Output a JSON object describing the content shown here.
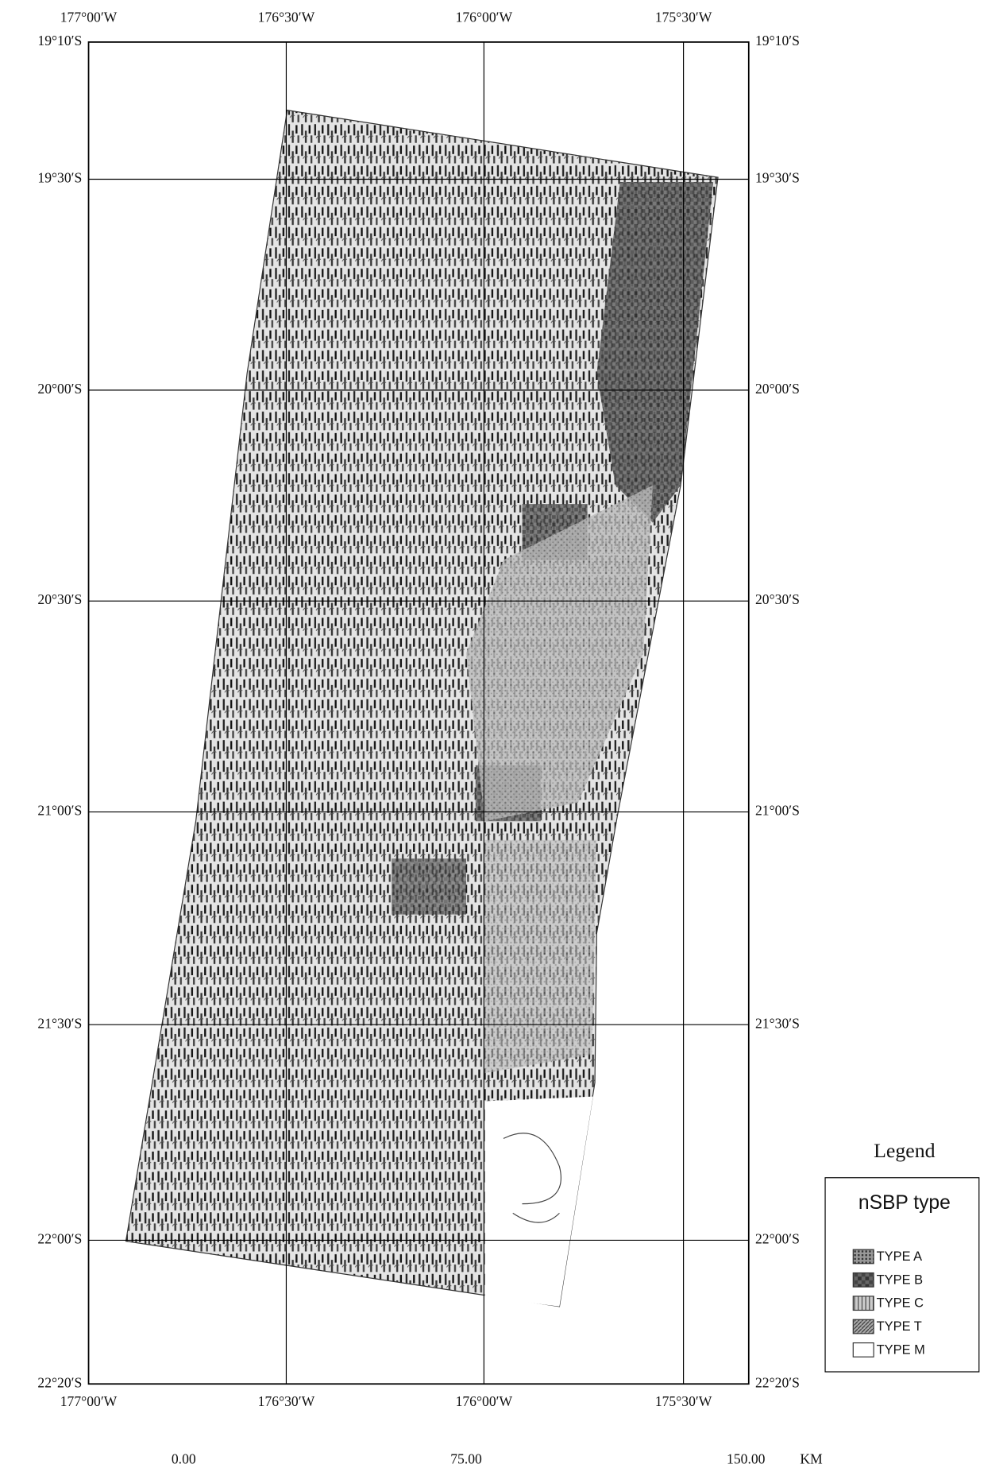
{
  "map": {
    "lon_labels_top": [
      "177°00′W",
      "176°30′W",
      "176°00′W",
      "175°30′W"
    ],
    "lon_labels_bottom": [
      "177°00′W",
      "176°30′W",
      "176°00′W",
      "175°30′W"
    ],
    "lat_labels_left": [
      "19°10′S",
      "19°30′S",
      "20°00′S",
      "20°30′S",
      "21°00′S",
      "21°30′S",
      "22°00′S",
      "22°20′S"
    ],
    "lat_labels_right": [
      "19°10′S",
      "19°30′S",
      "20°00′S",
      "20°30′S",
      "21°00′S",
      "21°30′S",
      "22°00′S",
      "22°20′S"
    ]
  },
  "legend": {
    "title": "Legend",
    "header": "nSBP type",
    "items": [
      "TYPE A",
      "TYPE B",
      "TYPE C",
      "TYPE T",
      "TYPE M"
    ]
  },
  "scale_bar": {
    "labels": [
      "0.00",
      "75.00",
      "150.00"
    ],
    "unit": "KM"
  }
}
